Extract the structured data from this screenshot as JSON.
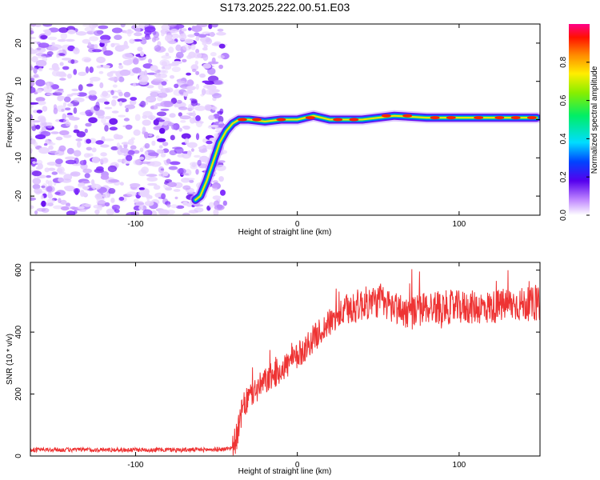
{
  "chart_data": [
    {
      "type": "heatmap",
      "title": "S173.2025.222.00.51.E03",
      "xlabel": "Height of straight line (km)",
      "ylabel": "Frequency (Hz)",
      "xlim": [
        -165,
        150
      ],
      "ylim": [
        -25,
        25
      ],
      "xticks": [
        "-100",
        "0",
        "100"
      ],
      "yticks": [
        "-20",
        "-10",
        "0",
        "10",
        "20"
      ],
      "colorbar": {
        "label": "Normalized spectral amplitude",
        "range": [
          0,
          1
        ],
        "ticks": [
          "0.0",
          "0.2",
          "0.4",
          "0.6",
          "0.8"
        ]
      },
      "ridge": {
        "x": [
          -63,
          -60,
          -56,
          -52,
          -48,
          -44,
          -40,
          -36,
          -30,
          -20,
          -10,
          0,
          10,
          20,
          40,
          60,
          80,
          100,
          120,
          148
        ],
        "y": [
          -21,
          -20,
          -16,
          -11,
          -6,
          -3,
          -1,
          0,
          0,
          -0.5,
          0,
          0,
          1,
          0,
          0,
          1,
          0.5,
          0.5,
          0.5,
          0.5
        ]
      },
      "noise_region_x": [
        -165,
        -52
      ]
    },
    {
      "type": "line",
      "xlabel": "Height of straight line (km)",
      "ylabel": "SNR (10 * v/v)",
      "xlim": [
        -165,
        150
      ],
      "ylim": [
        0,
        625
      ],
      "xticks": [
        "-100",
        "0",
        "100"
      ],
      "yticks": [
        "0",
        "200",
        "400",
        "600"
      ],
      "series": [
        {
          "name": "SNR",
          "color": "#ee3333",
          "x": [
            -165,
            -140,
            -120,
            -100,
            -80,
            -60,
            -45,
            -40,
            -37,
            -34,
            -30,
            -20,
            -10,
            0,
            10,
            20,
            30,
            40,
            50,
            60,
            70,
            80,
            90,
            100,
            110,
            120,
            130,
            140,
            150
          ],
          "y": [
            20,
            20,
            20,
            20,
            20,
            20,
            22,
            28,
            70,
            150,
            190,
            240,
            280,
            320,
            380,
            430,
            470,
            490,
            500,
            480,
            460,
            480,
            480,
            480,
            480,
            480,
            490,
            490,
            490
          ]
        }
      ]
    }
  ]
}
